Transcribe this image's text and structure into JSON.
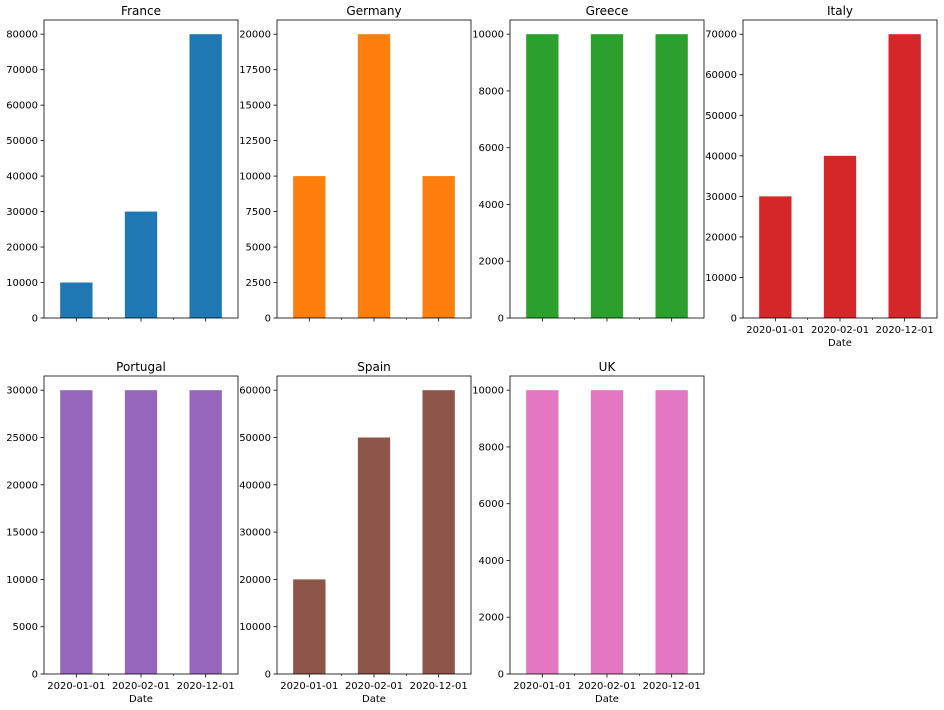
{
  "chart_data": [
    {
      "type": "bar",
      "title": "France",
      "categories": [
        "2020-01-01",
        "2020-02-01",
        "2020-12-01"
      ],
      "values": [
        10000,
        30000,
        80000
      ],
      "ylim": [
        0,
        84000
      ],
      "yticks": [
        "0",
        "10000",
        "20000",
        "30000",
        "40000",
        "50000",
        "60000",
        "70000",
        "80000"
      ],
      "xlabel": "",
      "color": "#1f77b4",
      "show_xticklabels": false
    },
    {
      "type": "bar",
      "title": "Germany",
      "categories": [
        "2020-01-01",
        "2020-02-01",
        "2020-12-01"
      ],
      "values": [
        10000,
        20000,
        10000
      ],
      "ylim": [
        0,
        21000
      ],
      "yticks": [
        "0",
        "2500",
        "5000",
        "7500",
        "10000",
        "12500",
        "15000",
        "17500",
        "20000"
      ],
      "xlabel": "",
      "color": "#ff7f0e",
      "show_xticklabels": false
    },
    {
      "type": "bar",
      "title": "Greece",
      "categories": [
        "2020-01-01",
        "2020-02-01",
        "2020-12-01"
      ],
      "values": [
        10000,
        10000,
        10000
      ],
      "ylim": [
        0,
        10500
      ],
      "yticks": [
        "0",
        "2000",
        "4000",
        "6000",
        "8000",
        "10000"
      ],
      "xlabel": "",
      "color": "#2ca02c",
      "show_xticklabels": false
    },
    {
      "type": "bar",
      "title": "Italy",
      "categories": [
        "2020-01-01",
        "2020-02-01",
        "2020-12-01"
      ],
      "values": [
        30000,
        40000,
        70000
      ],
      "ylim": [
        0,
        73500
      ],
      "yticks": [
        "0",
        "10000",
        "20000",
        "30000",
        "40000",
        "50000",
        "60000",
        "70000"
      ],
      "xlabel": "Date",
      "color": "#d62728",
      "show_xticklabels": true
    },
    {
      "type": "bar",
      "title": "Portugal",
      "categories": [
        "2020-01-01",
        "2020-02-01",
        "2020-12-01"
      ],
      "values": [
        30000,
        30000,
        30000
      ],
      "ylim": [
        0,
        31500
      ],
      "yticks": [
        "0",
        "5000",
        "10000",
        "15000",
        "20000",
        "25000",
        "30000"
      ],
      "xlabel": "Date",
      "color": "#9467bd",
      "show_xticklabels": true
    },
    {
      "type": "bar",
      "title": "Spain",
      "categories": [
        "2020-01-01",
        "2020-02-01",
        "2020-12-01"
      ],
      "values": [
        20000,
        50000,
        60000
      ],
      "ylim": [
        0,
        63000
      ],
      "yticks": [
        "0",
        "10000",
        "20000",
        "30000",
        "40000",
        "50000",
        "60000"
      ],
      "xlabel": "Date",
      "color": "#8c564b",
      "show_xticklabels": true
    },
    {
      "type": "bar",
      "title": "UK",
      "categories": [
        "2020-01-01",
        "2020-02-01",
        "2020-12-01"
      ],
      "values": [
        10000,
        10000,
        10000
      ],
      "ylim": [
        0,
        10500
      ],
      "yticks": [
        "0",
        "2000",
        "4000",
        "6000",
        "8000",
        "10000"
      ],
      "xlabel": "Date",
      "color": "#e377c2",
      "show_xticklabels": true
    }
  ]
}
